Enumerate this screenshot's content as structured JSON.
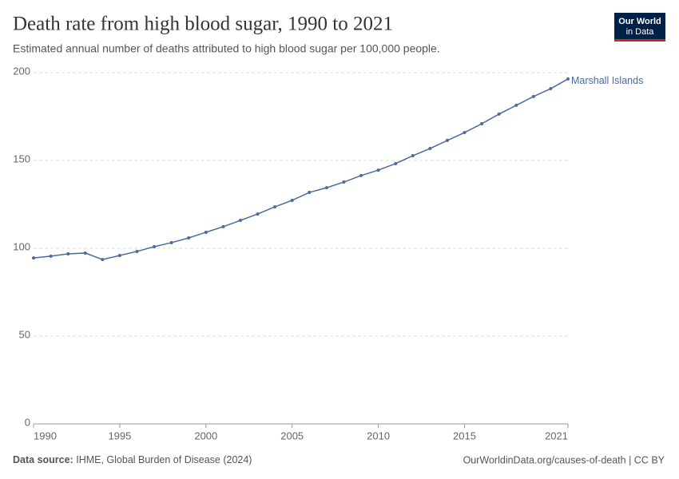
{
  "logo": [
    "Our World",
    "in Data"
  ],
  "chart_data": {
    "type": "line",
    "title": "Death rate from high blood sugar, 1990 to 2021",
    "subtitle": "Estimated annual number of deaths attributed to high blood sugar per 100,000 people.",
    "x": [
      1990,
      1991,
      1992,
      1993,
      1994,
      1995,
      1996,
      1997,
      1998,
      1999,
      2000,
      2001,
      2002,
      2003,
      2004,
      2005,
      2006,
      2007,
      2008,
      2009,
      2010,
      2011,
      2012,
      2013,
      2014,
      2015,
      2016,
      2017,
      2018,
      2019,
      2020,
      2021
    ],
    "series": [
      {
        "name": "Marshall Islands",
        "color": "#4c6a9c",
        "values": [
          94.5,
          95.5,
          96.8,
          97.3,
          93.6,
          95.9,
          98.2,
          100.9,
          103.2,
          105.9,
          109.1,
          112.3,
          115.9,
          119.5,
          123.6,
          127.3,
          131.8,
          134.5,
          137.7,
          141.4,
          144.5,
          148.2,
          152.7,
          156.8,
          161.4,
          165.9,
          170.9,
          176.4,
          181.4,
          186.4,
          190.9,
          196.4
        ]
      }
    ],
    "xlim": [
      1990,
      2021
    ],
    "xticks": [
      1990,
      1995,
      2000,
      2005,
      2010,
      2015,
      2021
    ],
    "ylim": [
      0,
      200
    ],
    "yticks": [
      0,
      50,
      100,
      150,
      200
    ],
    "grid": true
  },
  "footer": {
    "source_label": "Data source:",
    "source": "IHME, Global Burden of Disease (2024)",
    "url": "OurWorldinData.org/causes-of-death | CC BY"
  }
}
